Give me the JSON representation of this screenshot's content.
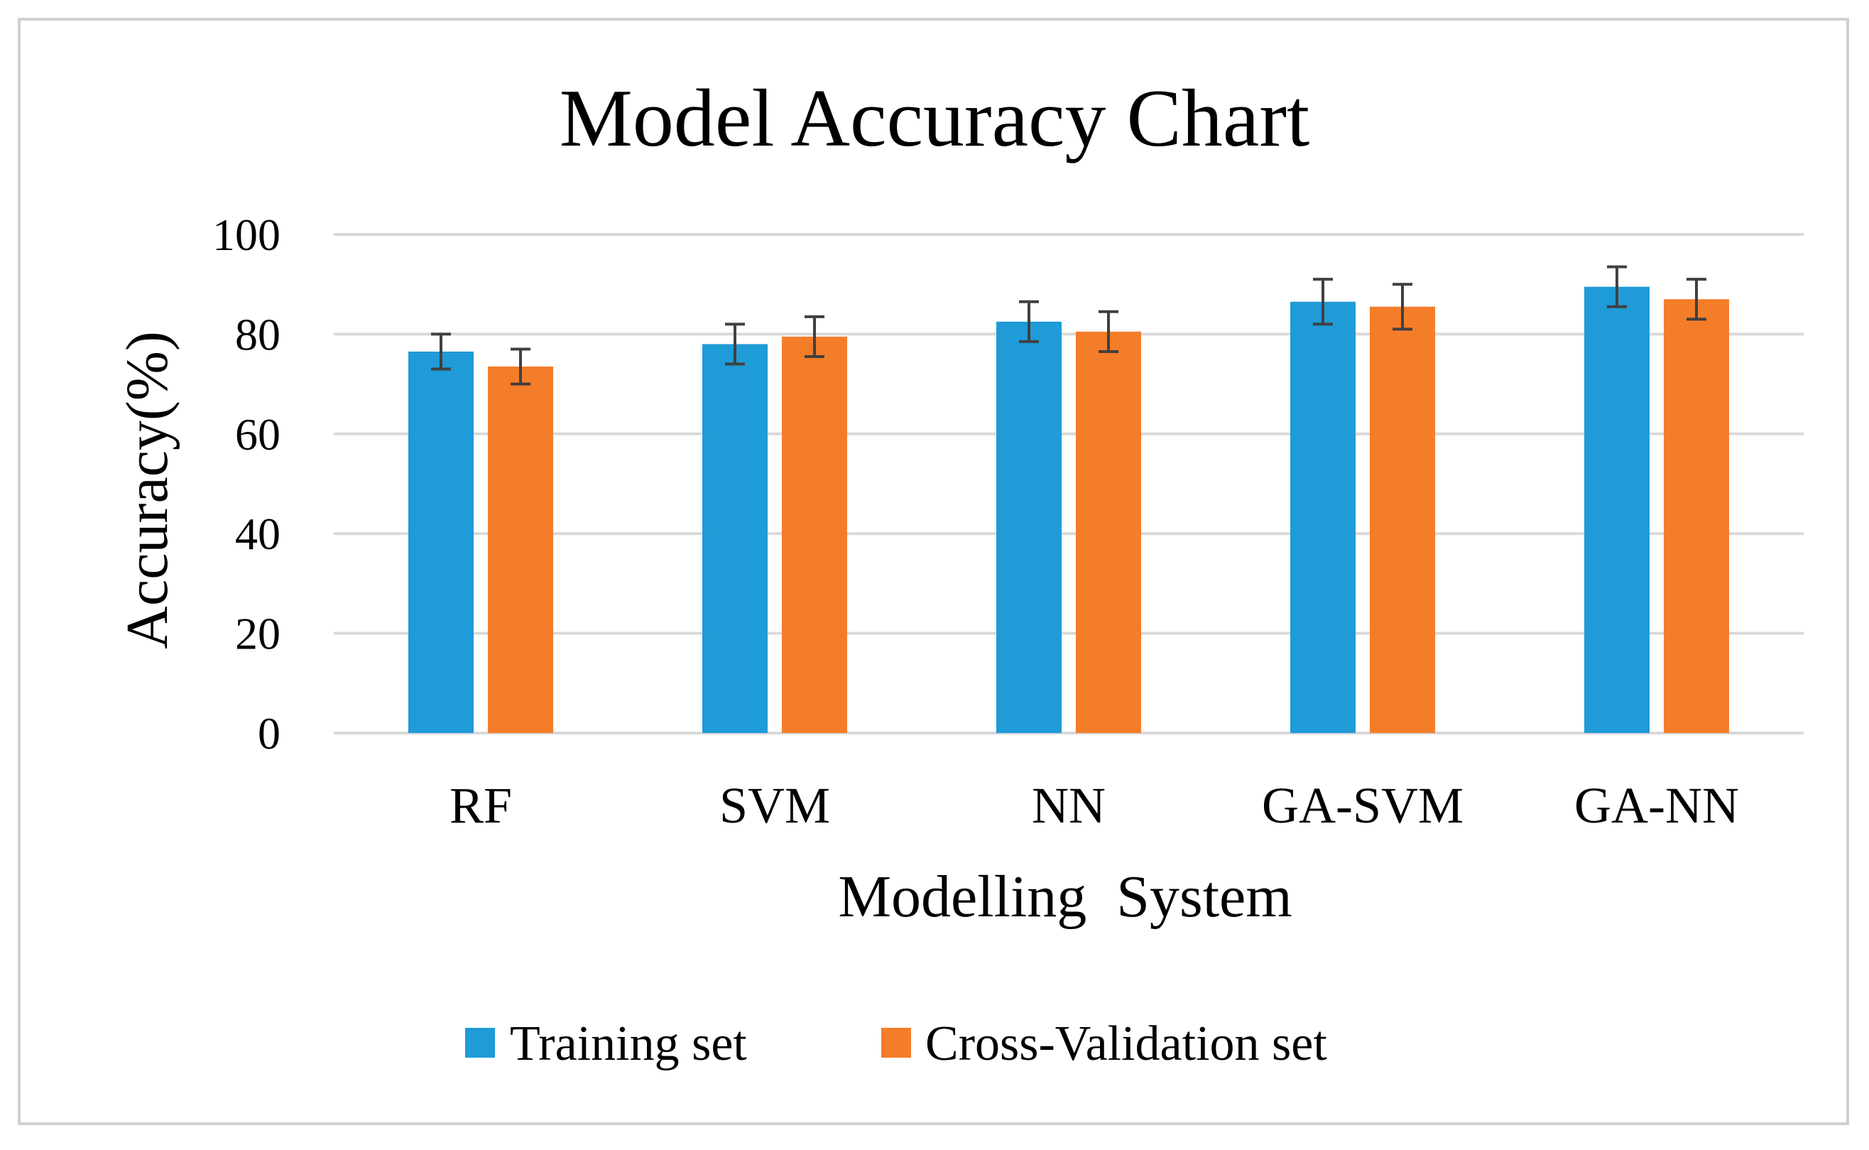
{
  "chart_data": {
    "type": "bar",
    "title": "Model Accuracy Chart",
    "xlabel": "Modelling  System",
    "ylabel": "Accuracy(%)",
    "ylim": [
      0,
      100
    ],
    "yticks": [
      0,
      20,
      40,
      60,
      80,
      100
    ],
    "grid": true,
    "legend_position": "bottom",
    "categories": [
      "RF",
      "SVM",
      "NN",
      "GA-SVM",
      "GA-NN"
    ],
    "series": [
      {
        "name": "Training set",
        "color": "#1f9bd7",
        "values": [
          76.5,
          78,
          82.5,
          86.5,
          89.5
        ],
        "errors": [
          3.5,
          4,
          4,
          4.5,
          4
        ]
      },
      {
        "name": "Cross-Validation set",
        "color": "#f47d29",
        "values": [
          73.5,
          79.5,
          80.5,
          85.5,
          87
        ],
        "errors": [
          3.5,
          4,
          4,
          4.5,
          4
        ]
      }
    ]
  }
}
